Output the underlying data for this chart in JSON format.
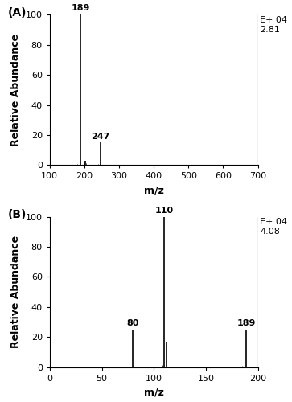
{
  "panel_A": {
    "label": "(A)",
    "xlim": [
      100,
      700
    ],
    "ylim": [
      0,
      100
    ],
    "xticks": [
      100,
      200,
      300,
      400,
      500,
      600,
      700
    ],
    "yticks": [
      0,
      20,
      40,
      60,
      80,
      100
    ],
    "xlabel": "m/z",
    "ylabel": "Relative Abundance",
    "peaks": [
      {
        "mz": 189,
        "abundance": 100,
        "label": "189"
      },
      {
        "mz": 203,
        "abundance": 3,
        "label": ""
      },
      {
        "mz": 247,
        "abundance": 15,
        "label": "247"
      }
    ],
    "annotation_line1": "E+ 04",
    "annotation_line2": "2.81",
    "noise_positions": [
      120,
      125,
      130,
      135,
      140,
      145,
      150,
      155,
      160,
      165,
      170,
      175,
      180,
      185,
      200,
      205,
      210,
      215,
      220,
      225,
      230,
      235,
      240,
      245,
      255,
      260,
      265,
      270,
      275,
      280,
      285,
      290,
      295,
      300,
      310,
      320,
      330,
      340,
      350,
      360,
      370,
      380,
      390,
      400,
      410,
      420,
      430,
      440,
      450,
      460,
      470,
      480,
      490,
      500,
      510,
      520,
      525,
      530,
      540,
      550,
      560,
      570,
      580,
      590,
      600,
      610,
      620,
      630,
      640,
      650,
      660,
      670,
      680,
      690
    ],
    "noise_heights": [
      0.5,
      0.3,
      0.4,
      0.2,
      0.3,
      0.2,
      0.2,
      0.3,
      0.3,
      0.2,
      0.4,
      0.5,
      0.6,
      0.5,
      2.5,
      1.5,
      0.5,
      0.3,
      0.5,
      0.4,
      0.3,
      0.5,
      0.8,
      1.0,
      0.5,
      0.4,
      0.3,
      0.2,
      0.3,
      0.4,
      0.3,
      0.2,
      0.2,
      0.2,
      0.2,
      0.2,
      0.2,
      0.2,
      0.2,
      0.2,
      0.2,
      0.2,
      0.2,
      0.2,
      0.2,
      0.2,
      0.2,
      0.2,
      0.2,
      0.2,
      0.2,
      0.2,
      0.2,
      0.3,
      0.2,
      0.5,
      0.3,
      0.2,
      0.2,
      0.2,
      0.2,
      0.2,
      0.2,
      0.2,
      0.2,
      0.2,
      0.2,
      0.2,
      0.2,
      0.2,
      0.2,
      0.2,
      0.2,
      0.2
    ]
  },
  "panel_B": {
    "label": "(B)",
    "xlim": [
      0,
      200
    ],
    "ylim": [
      0,
      100
    ],
    "xticks": [
      0,
      50,
      100,
      150,
      200
    ],
    "yticks": [
      0,
      20,
      40,
      60,
      80,
      100
    ],
    "xlabel": "m/z",
    "ylabel": "Relative Abundance",
    "peaks": [
      {
        "mz": 80,
        "abundance": 25,
        "label": "80"
      },
      {
        "mz": 110,
        "abundance": 100,
        "label": "110"
      },
      {
        "mz": 112,
        "abundance": 17,
        "label": ""
      },
      {
        "mz": 189,
        "abundance": 25,
        "label": "189"
      }
    ],
    "annotation_line1": "E+ 04",
    "annotation_line2": "4.08",
    "noise_positions": [
      1,
      5,
      10,
      15,
      20,
      25,
      30,
      35,
      40,
      45,
      50,
      55,
      60,
      65,
      70,
      75,
      78,
      82,
      85,
      88,
      92,
      95,
      98,
      105,
      108,
      115,
      118,
      120,
      125,
      130,
      135,
      140,
      145,
      150,
      155,
      160,
      165,
      170,
      175,
      180,
      185,
      192,
      195,
      198
    ],
    "noise_heights": [
      0.2,
      0.2,
      0.2,
      0.2,
      0.2,
      0.2,
      0.2,
      0.2,
      0.3,
      0.2,
      0.2,
      0.2,
      0.2,
      0.2,
      0.2,
      0.5,
      0.5,
      0.4,
      0.3,
      0.5,
      0.3,
      0.2,
      0.3,
      0.5,
      1.5,
      0.3,
      0.5,
      0.2,
      0.2,
      0.2,
      0.2,
      0.2,
      0.2,
      0.2,
      0.2,
      0.2,
      0.2,
      0.2,
      0.2,
      0.2,
      1.0,
      0.3,
      0.2,
      0.2
    ]
  },
  "bar_color": "#000000",
  "bg_color": "#ffffff",
  "tick_fontsize": 8,
  "label_fontsize": 9,
  "annotation_fontsize": 8
}
